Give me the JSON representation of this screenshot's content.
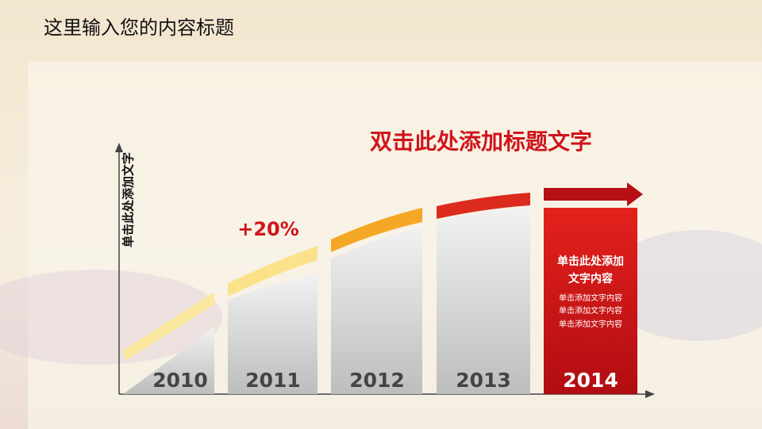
{
  "header": {
    "title": "这里输入您的内容标题"
  },
  "heading": "双击此处添加标题文字",
  "axis_label": "单击此处添加文字",
  "growth_label": "+20%",
  "bars": [
    "2010",
    "2011",
    "2012",
    "2013",
    "2014"
  ],
  "callout": {
    "title_lines": [
      "单击此处添加",
      "文字内容"
    ],
    "lines": [
      "单击添加文字内容",
      "单击添加文字内容",
      "单击添加文字内容"
    ]
  }
}
